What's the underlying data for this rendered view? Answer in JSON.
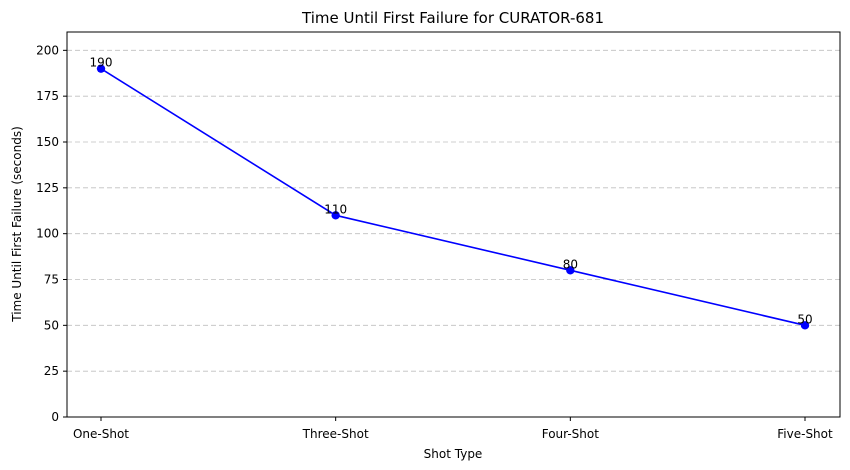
{
  "chart_data": {
    "type": "line",
    "title": "Time Until First Failure for CURATOR-681",
    "xlabel": "Shot Type",
    "ylabel": "Time Until First Failure (seconds)",
    "categories": [
      "One-Shot",
      "Three-Shot",
      "Four-Shot",
      "Five-Shot"
    ],
    "series": [
      {
        "values": [
          190,
          110,
          80,
          50
        ],
        "color": "#0000ff"
      }
    ],
    "data_labels": [
      "190",
      "110",
      "80",
      "50"
    ],
    "ylim": [
      0,
      210
    ],
    "yticks": [
      0,
      25,
      50,
      75,
      100,
      125,
      150,
      175,
      200
    ],
    "grid": "y-dashed",
    "legend": "none"
  }
}
